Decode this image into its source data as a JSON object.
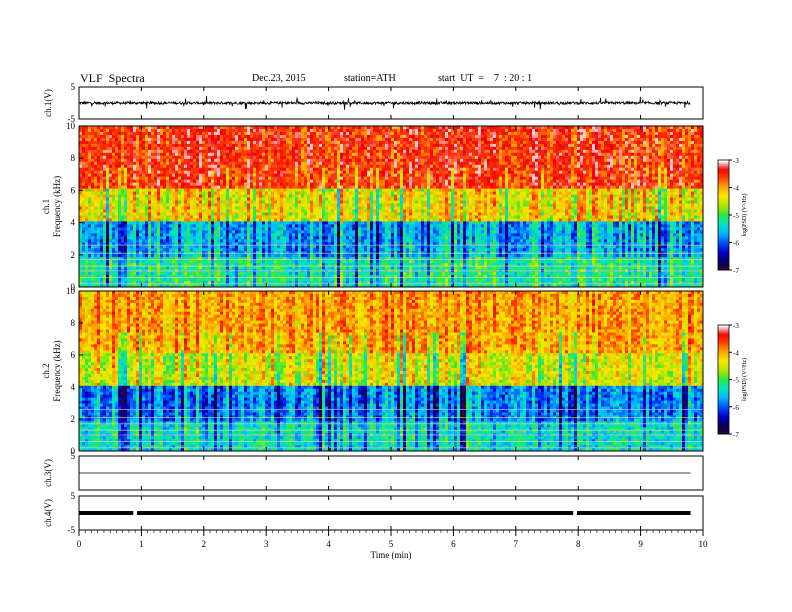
{
  "header": {
    "title": "VLF  Spectra",
    "date": "Dec.23, 2015",
    "station": "station=ATH",
    "start": "start  UT  =    7  : 20 : 1"
  },
  "chart_data": [
    {
      "type": "line",
      "panel": "ch1-waveform",
      "ylabel": "ch.1(V)",
      "ylim": [
        -5,
        5
      ],
      "y_ticks": [
        "5",
        "-5"
      ],
      "x_range": [
        0,
        9.8
      ],
      "baseline": 0,
      "amplitude_typical": 0.8
    },
    {
      "type": "heatmap",
      "panel": "ch1-spectrogram",
      "ylabel": "ch.1\nFrequency (kHz)",
      "ylabel_lines": [
        "ch.1",
        "Frequency (kHz)"
      ],
      "ylim": [
        0,
        10
      ],
      "y_ticks": [
        "0",
        "2",
        "4",
        "6",
        "8",
        "10"
      ],
      "colorbar": {
        "label": "log(PSD) (V²/Hz)",
        "range": [
          -7,
          -3
        ],
        "ticks": [
          "-3",
          "-4",
          "-5",
          "-6",
          "-7"
        ]
      }
    },
    {
      "type": "heatmap",
      "panel": "ch2-spectrogram",
      "ylabel_lines": [
        "ch.2",
        "Frequency (kHz)"
      ],
      "ylim": [
        0,
        10
      ],
      "y_ticks": [
        "0",
        "2",
        "4",
        "6",
        "8",
        "10"
      ],
      "colorbar": {
        "label": "log(PSD) (V²/Hz)",
        "range": [
          -7,
          -3
        ],
        "ticks": [
          "-3",
          "-4",
          "-5",
          "-6",
          "-7"
        ]
      }
    },
    {
      "type": "line",
      "panel": "ch3-waveform",
      "ylabel": "ch.3(V)",
      "ylim": [
        -5,
        5
      ],
      "y_ticks": [
        "5"
      ],
      "baseline": 0
    },
    {
      "type": "line",
      "panel": "ch4-waveform",
      "ylabel": "ch.4(V)",
      "ylim": [
        -5,
        5
      ],
      "y_ticks": [
        "5",
        "-5"
      ],
      "baseline": 0,
      "gaps_min": [
        0.9,
        7.95
      ]
    }
  ],
  "x_axis": {
    "label": "Time  (min)",
    "range": [
      0,
      10
    ],
    "ticks": [
      "0",
      "1",
      "2",
      "3",
      "4",
      "5",
      "6",
      "7",
      "8",
      "9",
      "10"
    ]
  },
  "colormap": [
    "#3a0030",
    "#000060",
    "#0000c8",
    "#0050ff",
    "#00b4ff",
    "#00e6c0",
    "#30e640",
    "#b4e600",
    "#ffe600",
    "#ffa000",
    "#ff3c00",
    "#f00000",
    "#ffc8c8",
    "#ffffff"
  ]
}
